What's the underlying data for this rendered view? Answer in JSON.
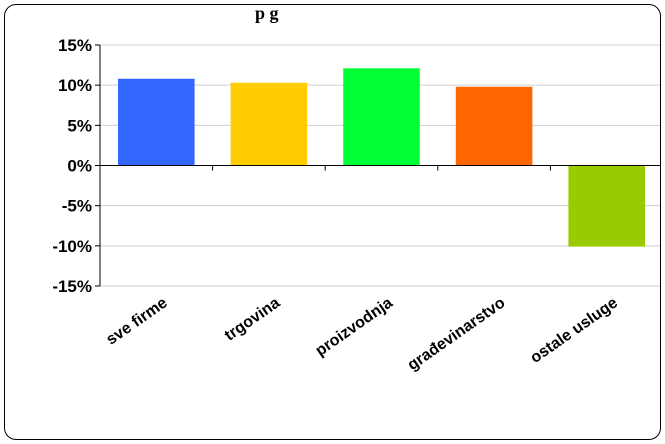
{
  "chart_data": {
    "type": "bar",
    "title": "p  g",
    "categories": [
      "sve firme",
      "trgovina",
      "proizvodnja",
      "građevinarstvo",
      "ostale usluge"
    ],
    "values": [
      10.8,
      10.3,
      12.1,
      9.8,
      -10.1
    ],
    "colors": [
      "#3366FF",
      "#FFCC00",
      "#00FF33",
      "#FF6600",
      "#99CC00"
    ],
    "ylim": [
      -15,
      15
    ],
    "yticks": [
      15,
      10,
      5,
      0,
      -5,
      -10,
      -15
    ],
    "ytick_labels": [
      "15%",
      "10%",
      "5%",
      "0%",
      "-5%",
      "-10%",
      "-15%"
    ],
    "grid": true,
    "xlabel": "",
    "ylabel": ""
  }
}
